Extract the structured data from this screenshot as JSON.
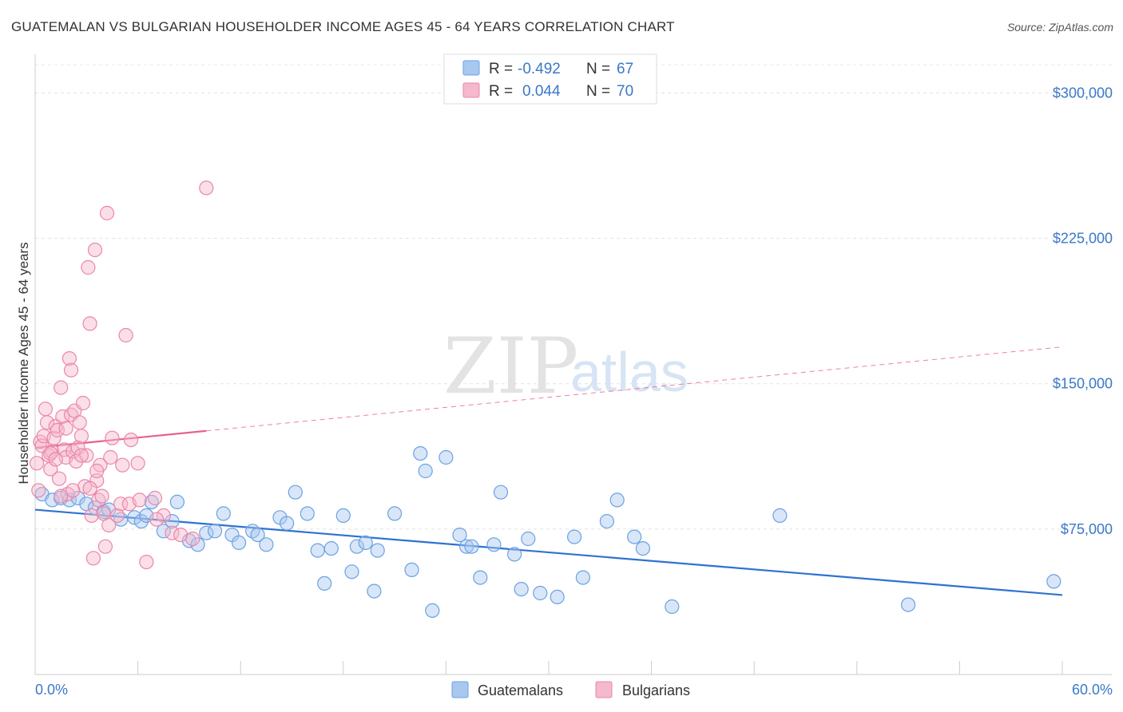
{
  "title": "GUATEMALAN VS BULGARIAN HOUSEHOLDER INCOME AGES 45 - 64 YEARS CORRELATION CHART",
  "source": "Source: ZipAtlas.com",
  "watermark": {
    "zip": "ZIP",
    "atlas": "atlas"
  },
  "legend": {
    "rows": [
      {
        "r_label": "R = ",
        "r_value": "-0.492",
        "n_label": "N = ",
        "n_value": "67",
        "color": "#a9c8f0"
      },
      {
        "r_label": "R = ",
        "r_value": "0.044",
        "n_label": "N = ",
        "n_value": "70",
        "color": "#f5b8cc"
      }
    ]
  },
  "bottom_legend": [
    {
      "label": "Guatemalans",
      "color": "#a9c8f0"
    },
    {
      "label": "Bulgarians",
      "color": "#f5b8cc"
    }
  ],
  "chart_data": {
    "type": "scatter",
    "ylabel": "Householder Income Ages 45 - 64 years",
    "xlim": [
      0,
      60
    ],
    "ylim": [
      0,
      315000
    ],
    "y_ticks": [
      {
        "value": 75000,
        "label": "$75,000"
      },
      {
        "value": 150000,
        "label": "$150,000"
      },
      {
        "value": 225000,
        "label": "$225,000"
      },
      {
        "value": 300000,
        "label": "$300,000"
      }
    ],
    "x_tick_labels": {
      "min": "0.0%",
      "max": "60.0%"
    },
    "grid": true,
    "series": [
      {
        "name": "Guatemalans",
        "color": "#6aa2e4",
        "fill": "#a9c8f0",
        "line_color": "#2f72d0",
        "trend": {
          "x0": 0,
          "y0": 85000,
          "x1": 60,
          "y1": 41000,
          "dashed_from": null
        },
        "points": [
          [
            0.4,
            93000
          ],
          [
            1.0,
            90000
          ],
          [
            1.5,
            91000
          ],
          [
            2.0,
            90000
          ],
          [
            2.5,
            91000
          ],
          [
            3.0,
            88000
          ],
          [
            3.5,
            86000
          ],
          [
            4.0,
            84000
          ],
          [
            4.3,
            85000
          ],
          [
            5.0,
            80000
          ],
          [
            5.8,
            81000
          ],
          [
            6.2,
            79000
          ],
          [
            6.8,
            89000
          ],
          [
            6.5,
            82000
          ],
          [
            7.5,
            74000
          ],
          [
            8.0,
            79000
          ],
          [
            8.3,
            89000
          ],
          [
            9.0,
            69000
          ],
          [
            9.5,
            67000
          ],
          [
            10.0,
            73000
          ],
          [
            10.5,
            74000
          ],
          [
            11.0,
            83000
          ],
          [
            11.5,
            72000
          ],
          [
            11.9,
            68000
          ],
          [
            12.7,
            74000
          ],
          [
            13.0,
            72000
          ],
          [
            13.5,
            67000
          ],
          [
            14.3,
            81000
          ],
          [
            14.7,
            78000
          ],
          [
            15.2,
            94000
          ],
          [
            15.9,
            83000
          ],
          [
            16.5,
            64000
          ],
          [
            16.9,
            47000
          ],
          [
            17.3,
            65000
          ],
          [
            18.0,
            82000
          ],
          [
            18.5,
            53000
          ],
          [
            18.8,
            66000
          ],
          [
            19.3,
            68000
          ],
          [
            19.8,
            43000
          ],
          [
            20.0,
            64000
          ],
          [
            21.0,
            83000
          ],
          [
            22.0,
            54000
          ],
          [
            22.5,
            114000
          ],
          [
            22.8,
            105000
          ],
          [
            23.2,
            33000
          ],
          [
            24.0,
            112000
          ],
          [
            24.8,
            72000
          ],
          [
            25.2,
            66000
          ],
          [
            25.5,
            66000
          ],
          [
            26.0,
            50000
          ],
          [
            26.8,
            67000
          ],
          [
            27.2,
            94000
          ],
          [
            28.0,
            62000
          ],
          [
            28.4,
            44000
          ],
          [
            28.8,
            70000
          ],
          [
            29.5,
            42000
          ],
          [
            30.5,
            40000
          ],
          [
            31.5,
            71000
          ],
          [
            32.0,
            50000
          ],
          [
            33.4,
            79000
          ],
          [
            34.0,
            90000
          ],
          [
            35.0,
            71000
          ],
          [
            35.5,
            65000
          ],
          [
            37.2,
            35000
          ],
          [
            43.5,
            82000
          ],
          [
            51.0,
            36000
          ],
          [
            59.5,
            48000
          ]
        ]
      },
      {
        "name": "Bulgarians",
        "color": "#ec86a8",
        "fill": "#f5b8cc",
        "line_color": "#e8608e",
        "trend": {
          "x0": 0,
          "y0": 117000,
          "x1": 60,
          "y1": 169000,
          "dashed_from": 10
        },
        "points": [
          [
            0.1,
            109000
          ],
          [
            0.2,
            95000
          ],
          [
            0.3,
            120000
          ],
          [
            0.4,
            118000
          ],
          [
            0.5,
            123000
          ],
          [
            0.6,
            137000
          ],
          [
            0.7,
            130000
          ],
          [
            0.8,
            113000
          ],
          [
            0.9,
            106000
          ],
          [
            1.0,
            115000
          ],
          [
            1.1,
            122000
          ],
          [
            1.2,
            128000
          ],
          [
            1.3,
            126000
          ],
          [
            1.4,
            101000
          ],
          [
            1.5,
            148000
          ],
          [
            1.6,
            133000
          ],
          [
            1.7,
            116000
          ],
          [
            1.8,
            112000
          ],
          [
            1.9,
            93000
          ],
          [
            2.0,
            163000
          ],
          [
            2.1,
            134000
          ],
          [
            2.2,
            115000
          ],
          [
            2.3,
            136000
          ],
          [
            2.4,
            110000
          ],
          [
            2.5,
            117000
          ],
          [
            2.6,
            130000
          ],
          [
            2.7,
            123000
          ],
          [
            2.8,
            140000
          ],
          [
            2.9,
            97000
          ],
          [
            3.0,
            113000
          ],
          [
            3.1,
            210000
          ],
          [
            3.2,
            181000
          ],
          [
            3.3,
            82000
          ],
          [
            3.4,
            60000
          ],
          [
            3.5,
            219000
          ],
          [
            3.6,
            100000
          ],
          [
            3.7,
            90000
          ],
          [
            3.8,
            108000
          ],
          [
            3.9,
            92000
          ],
          [
            4.0,
            83000
          ],
          [
            4.2,
            238000
          ],
          [
            4.3,
            77000
          ],
          [
            4.5,
            122000
          ],
          [
            4.8,
            82000
          ],
          [
            5.0,
            88000
          ],
          [
            5.3,
            175000
          ],
          [
            5.6,
            121000
          ],
          [
            6.0,
            109000
          ],
          [
            6.5,
            58000
          ],
          [
            7.0,
            91000
          ],
          [
            7.5,
            82000
          ],
          [
            8.0,
            73000
          ],
          [
            8.5,
            72000
          ],
          [
            9.2,
            70000
          ],
          [
            10.0,
            251000
          ],
          [
            1.5,
            92000
          ],
          [
            2.1,
            157000
          ],
          [
            3.2,
            96000
          ],
          [
            4.1,
            66000
          ],
          [
            4.4,
            112000
          ],
          [
            5.1,
            108000
          ],
          [
            5.5,
            88000
          ],
          [
            6.1,
            90000
          ],
          [
            7.1,
            80000
          ],
          [
            0.9,
            114000
          ],
          [
            1.8,
            127000
          ],
          [
            2.7,
            113000
          ],
          [
            3.6,
            105000
          ],
          [
            2.2,
            95000
          ],
          [
            1.2,
            111000
          ]
        ]
      }
    ]
  }
}
